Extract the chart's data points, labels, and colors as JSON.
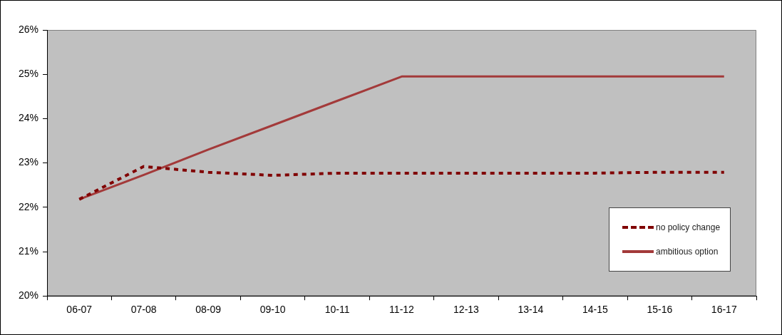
{
  "chart_data": {
    "type": "line",
    "categories": [
      "06-07",
      "07-08",
      "08-09",
      "09-10",
      "10-11",
      "11-12",
      "12-13",
      "13-14",
      "14-15",
      "15-16",
      "16-17"
    ],
    "series": [
      {
        "name": "no policy change",
        "color": "#800000",
        "line_style": "dashed",
        "values": [
          22.18,
          22.92,
          22.79,
          22.72,
          22.77,
          22.77,
          22.77,
          22.77,
          22.77,
          22.79,
          22.79
        ]
      },
      {
        "name": "ambitious option",
        "color": "#a33a3a",
        "line_style": "solid",
        "values": [
          22.18,
          22.73,
          23.3,
          23.85,
          24.4,
          24.95,
          24.95,
          24.95,
          24.95,
          24.95,
          24.95
        ]
      }
    ],
    "ylim": [
      20,
      26
    ],
    "yticks": [
      {
        "value": 20,
        "label": "20%"
      },
      {
        "value": 21,
        "label": "21%"
      },
      {
        "value": 22,
        "label": "22%"
      },
      {
        "value": 23,
        "label": "23%"
      },
      {
        "value": 24,
        "label": "24%"
      },
      {
        "value": 25,
        "label": "25%"
      },
      {
        "value": 26,
        "label": "26%"
      }
    ],
    "grid": false,
    "legend": "bottom right",
    "marker": "none"
  }
}
